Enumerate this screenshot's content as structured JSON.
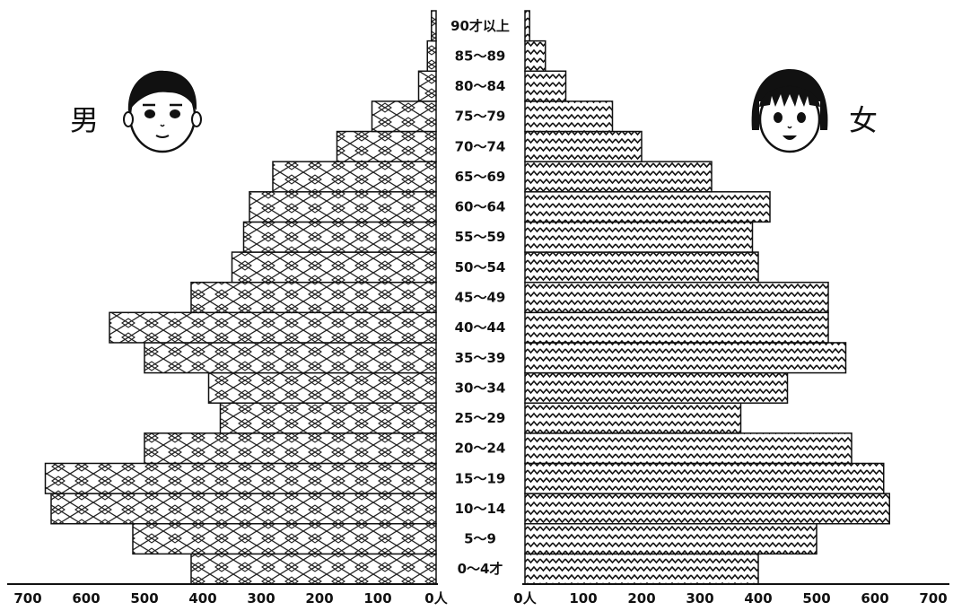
{
  "chart_data": {
    "type": "bar",
    "orientation": "population-pyramid",
    "categories": [
      "0～4才",
      "5～9",
      "10～14",
      "15～19",
      "20～24",
      "25～29",
      "30～34",
      "35～39",
      "40～44",
      "45～49",
      "50～54",
      "55～59",
      "60～64",
      "65～69",
      "70～74",
      "75～79",
      "80～84",
      "85～89",
      "90才以上"
    ],
    "series": [
      {
        "name": "男",
        "values": [
          420,
          520,
          660,
          670,
          500,
          370,
          390,
          500,
          560,
          420,
          350,
          330,
          320,
          280,
          170,
          110,
          30,
          15,
          8
        ]
      },
      {
        "name": "女",
        "values": [
          400,
          500,
          625,
          615,
          560,
          370,
          450,
          550,
          520,
          520,
          400,
          390,
          420,
          320,
          200,
          150,
          70,
          35,
          8
        ]
      }
    ],
    "left_axis_ticks": [
      "700",
      "600",
      "500",
      "400",
      "300",
      "200",
      "100",
      "0人"
    ],
    "right_axis_ticks": [
      "0人",
      "100",
      "200",
      "300",
      "400",
      "500",
      "600",
      "700"
    ],
    "xlim": [
      0,
      700
    ],
    "colors": {
      "bar_outline": "#111111",
      "male_pattern": "#222222",
      "female_pattern": "#111111"
    },
    "icons": {
      "male": "boy-face-icon",
      "female": "girl-face-icon"
    }
  }
}
